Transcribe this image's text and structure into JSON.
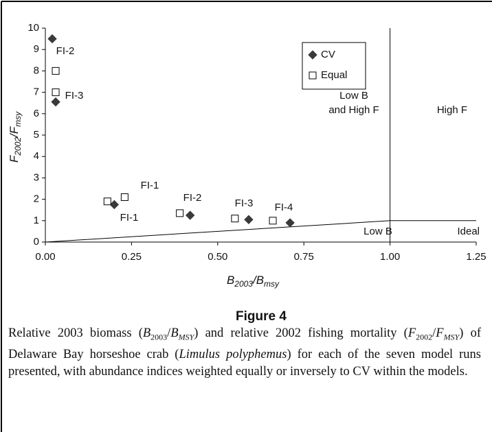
{
  "chart_data": {
    "type": "scatter",
    "figure_label": "Figure 4",
    "xlabel": {
      "main": "B",
      "sub": "2003",
      "main2": "/B",
      "sub2": "msy"
    },
    "ylabel": {
      "main": "F",
      "sub": "2002",
      "main2": "/F",
      "sub2": "msy"
    },
    "xlim": [
      0,
      1.25
    ],
    "ylim": [
      0,
      10
    ],
    "xticks": [
      {
        "value": 0,
        "label": "0.00"
      },
      0.25,
      {
        "value": 0.5,
        "label": "0.50"
      },
      0.75,
      {
        "value": 1,
        "label": "1.00"
      },
      1.25
    ],
    "yticks": [
      0,
      1,
      2,
      3,
      4,
      5,
      6,
      7,
      8,
      9,
      10
    ],
    "grid": false,
    "series": [
      {
        "name": "CV",
        "marker": "diamond",
        "color": "#3a3a3a",
        "x": [
          0.02,
          0.03,
          0.2,
          0.42,
          0.59,
          0.71
        ],
        "values": [
          9.5,
          6.55,
          1.75,
          1.25,
          1.05,
          0.9
        ]
      },
      {
        "name": "Equal",
        "marker": "square",
        "color": "#ffffff",
        "x": [
          0.03,
          0.03,
          0.18,
          0.23,
          0.39,
          0.55,
          0.66
        ],
        "values": [
          8.0,
          7.0,
          1.9,
          2.1,
          1.35,
          1.1,
          1.0
        ]
      }
    ],
    "thresholds": {
      "b": 1,
      "f": 1
    },
    "annotations": [
      "FI-2",
      "FI-3",
      "FI-1",
      "FI-1",
      "FI-2",
      "FI-3",
      "FI-4"
    ],
    "region_labels": [
      "Low B",
      "and High F",
      "High F",
      "Low B",
      "Ideal"
    ],
    "caption": [
      {
        "text": "Relative 2003 biomass (",
        "format": "plain"
      },
      {
        "text": "B",
        "format": "italic"
      },
      {
        "text": "2003",
        "format": "sub-roman"
      },
      {
        "text": "/",
        "format": "plain"
      },
      {
        "text": "B",
        "format": "italic"
      },
      {
        "text": "MSY",
        "format": "sub"
      },
      {
        "text": ") and relative 2002 fishing mortality (",
        "format": "plain"
      },
      {
        "text": "F",
        "format": "italic"
      },
      {
        "text": "2002",
        "format": "sub-roman"
      },
      {
        "text": "/",
        "format": "plain"
      },
      {
        "text": "F",
        "format": "italic"
      },
      {
        "text": "MSY",
        "format": "sub"
      },
      {
        "text": ") of Delaware Bay horseshoe crab (",
        "format": "plain"
      },
      {
        "text": "Limulus polyphemus",
        "format": "italic"
      },
      {
        "text": ") for each of the seven model runs presented, with abundance indices weighted equally or inversely to CV within the models.",
        "format": "plain"
      }
    ]
  }
}
